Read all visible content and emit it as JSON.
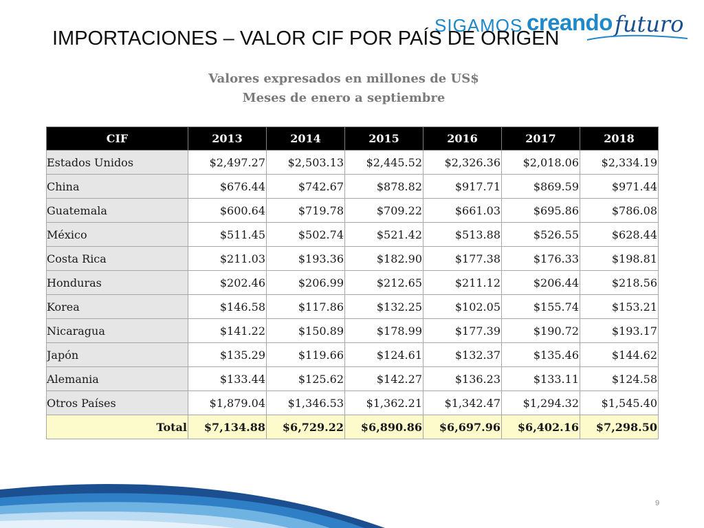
{
  "logo": {
    "part1": "SIGAMOS",
    "part2": "creando",
    "part3": "futuro"
  },
  "title": "IMPORTACIONES –  VALOR CIF POR PAÍS DE ORIGEN",
  "subtitle_line1": "Valores expresados en millones de US$",
  "subtitle_line2": "Meses de enero a septiembre",
  "table": {
    "headers": [
      "CIF",
      "2013",
      "2014",
      "2015",
      "2016",
      "2017",
      "2018"
    ],
    "rows": [
      {
        "country": "Estados Unidos",
        "values": [
          "$2,497.27",
          "$2,503.13",
          "$2,445.52",
          "$2,326.36",
          "$2,018.06",
          "$2,334.19"
        ]
      },
      {
        "country": "China",
        "values": [
          "$676.44",
          "$742.67",
          "$878.82",
          "$917.71",
          "$869.59",
          "$971.44"
        ]
      },
      {
        "country": "Guatemala",
        "values": [
          "$600.64",
          "$719.78",
          "$709.22",
          "$661.03",
          "$695.86",
          "$786.08"
        ]
      },
      {
        "country": "México",
        "values": [
          "$511.45",
          "$502.74",
          "$521.42",
          "$513.88",
          "$526.55",
          "$628.44"
        ]
      },
      {
        "country": "Costa Rica",
        "values": [
          "$211.03",
          "$193.36",
          "$182.90",
          "$177.38",
          "$176.33",
          "$198.81"
        ]
      },
      {
        "country": "Honduras",
        "values": [
          "$202.46",
          "$206.99",
          "$212.65",
          "$211.12",
          "$206.44",
          "$218.56"
        ]
      },
      {
        "country": "Korea",
        "values": [
          "$146.58",
          "$117.86",
          "$132.25",
          "$102.05",
          "$155.74",
          "$153.21"
        ]
      },
      {
        "country": "Nicaragua",
        "values": [
          "$141.22",
          "$150.89",
          "$178.99",
          "$177.39",
          "$190.72",
          "$193.17"
        ]
      },
      {
        "country": "Japón",
        "values": [
          "$135.29",
          "$119.66",
          "$124.61",
          "$132.37",
          "$135.46",
          "$144.62"
        ]
      },
      {
        "country": "Alemania",
        "values": [
          "$133.44",
          "$125.62",
          "$142.27",
          "$136.23",
          "$133.11",
          "$124.58"
        ]
      },
      {
        "country": "Otros Países",
        "values": [
          "$1,879.04",
          "$1,346.53",
          "$1,362.21",
          "$1,342.47",
          "$1,294.32",
          "$1,545.40"
        ]
      }
    ],
    "total": {
      "label": "Total",
      "values": [
        "$7,134.88",
        "$6,729.22",
        "$6,890.86",
        "$6,697.96",
        "$6,402.16",
        "$7,298.50"
      ]
    }
  },
  "page_number": "9",
  "colors": {
    "header_bg": "#000000",
    "country_bg": "#e6e6e6",
    "total_bg": "#fdfbcc",
    "brand_light_blue": "#1e88c9",
    "brand_dark_blue": "#17508f"
  }
}
